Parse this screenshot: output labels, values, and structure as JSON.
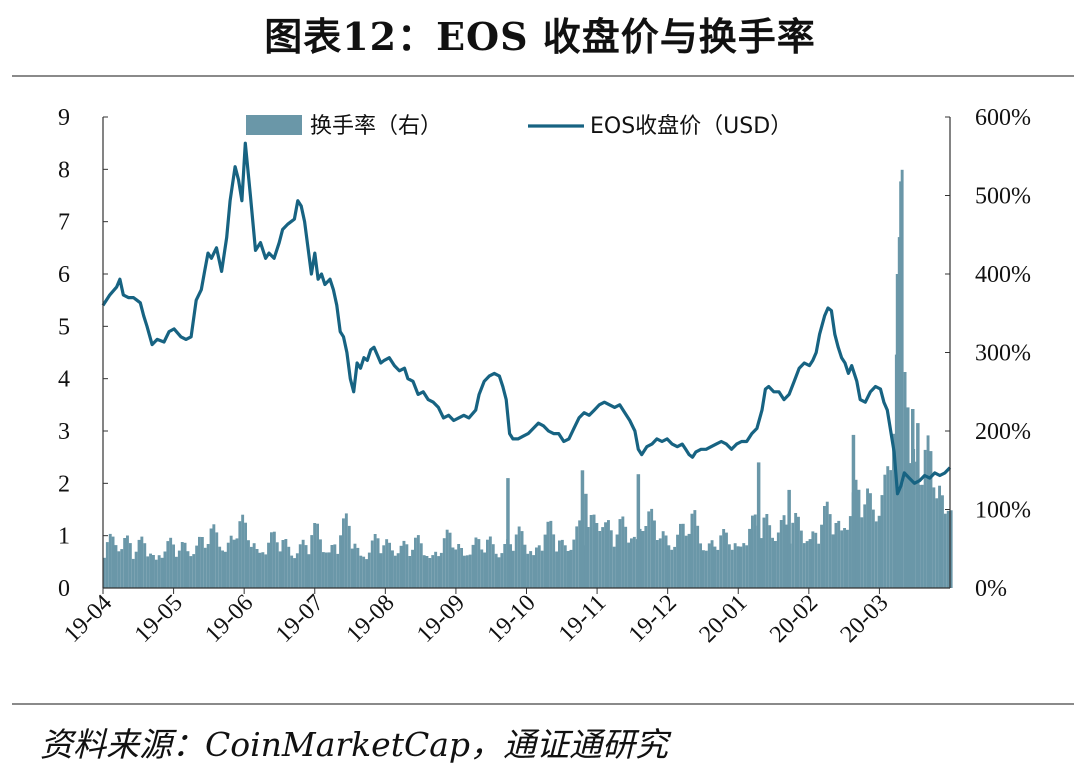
{
  "title": "图表12：EOS 收盘价与换手率",
  "source": "资料来源：CoinMarketCap，通证通研究",
  "chart_data": {
    "type": "line+bar",
    "xlabel": "",
    "x_tick_labels": [
      "19-04",
      "19-05",
      "19-06",
      "19-07",
      "19-08",
      "19-09",
      "19-10",
      "19-11",
      "19-12",
      "20-01",
      "20-02",
      "20-03"
    ],
    "y_left": {
      "label": "",
      "range": [
        0,
        9
      ],
      "ticks": [
        "0",
        "1",
        "2",
        "3",
        "4",
        "5",
        "6",
        "7",
        "8",
        "9"
      ]
    },
    "y_right": {
      "label": "",
      "range": [
        0,
        600
      ],
      "ticks": [
        "0%",
        "100%",
        "200%",
        "300%",
        "400%",
        "500%",
        "600%"
      ]
    },
    "legend": {
      "placement": "top-center",
      "bar_label": "换手率（右）",
      "line_label": "EOS收盘价（USD）"
    },
    "colors": {
      "bar": "#6a97a8",
      "line": "#176382"
    },
    "series": [
      {
        "name": "EOS收盘价（USD）",
        "axis": "left",
        "points": [
          [
            0,
            5.4
          ],
          [
            0.2,
            5.6
          ],
          [
            0.4,
            5.75
          ],
          [
            0.5,
            5.9
          ],
          [
            0.6,
            5.6
          ],
          [
            0.75,
            5.55
          ],
          [
            0.9,
            5.55
          ],
          [
            1.0,
            5.5
          ],
          [
            1.1,
            5.45
          ],
          [
            1.2,
            5.2
          ],
          [
            1.3,
            5.0
          ],
          [
            1.45,
            4.65
          ],
          [
            1.6,
            4.75
          ],
          [
            1.8,
            4.7
          ],
          [
            1.95,
            4.9
          ],
          [
            2.1,
            4.95
          ],
          [
            2.3,
            4.8
          ],
          [
            2.45,
            4.75
          ],
          [
            2.6,
            4.8
          ],
          [
            2.75,
            5.5
          ],
          [
            2.9,
            5.7
          ],
          [
            3.0,
            6.05
          ],
          [
            3.1,
            6.4
          ],
          [
            3.2,
            6.3
          ],
          [
            3.35,
            6.5
          ],
          [
            3.5,
            6.05
          ],
          [
            3.65,
            6.7
          ],
          [
            3.75,
            7.4
          ],
          [
            3.9,
            8.05
          ],
          [
            4.0,
            7.8
          ],
          [
            4.1,
            7.4
          ],
          [
            4.2,
            8.5
          ],
          [
            4.35,
            7.5
          ],
          [
            4.5,
            6.45
          ],
          [
            4.65,
            6.6
          ],
          [
            4.8,
            6.3
          ],
          [
            4.9,
            6.4
          ],
          [
            5.05,
            6.3
          ],
          [
            5.2,
            6.6
          ],
          [
            5.3,
            6.85
          ],
          [
            5.45,
            6.95
          ],
          [
            5.55,
            7.0
          ],
          [
            5.65,
            7.05
          ],
          [
            5.75,
            7.4
          ],
          [
            5.85,
            7.3
          ],
          [
            5.95,
            7.0
          ],
          [
            6.05,
            6.5
          ],
          [
            6.15,
            6.0
          ],
          [
            6.25,
            6.4
          ],
          [
            6.35,
            5.9
          ],
          [
            6.45,
            6.0
          ],
          [
            6.55,
            5.8
          ],
          [
            6.7,
            5.9
          ],
          [
            6.8,
            5.7
          ],
          [
            6.9,
            5.4
          ],
          [
            7.0,
            4.9
          ],
          [
            7.1,
            4.8
          ],
          [
            7.2,
            4.5
          ],
          [
            7.3,
            4.0
          ],
          [
            7.4,
            3.75
          ],
          [
            7.5,
            4.3
          ],
          [
            7.6,
            4.2
          ],
          [
            7.7,
            4.4
          ],
          [
            7.8,
            4.35
          ],
          [
            7.9,
            4.55
          ],
          [
            8.0,
            4.6
          ],
          [
            8.1,
            4.45
          ],
          [
            8.2,
            4.3
          ],
          [
            8.3,
            4.35
          ],
          [
            8.45,
            4.4
          ],
          [
            8.6,
            4.25
          ],
          [
            8.75,
            4.15
          ],
          [
            8.9,
            4.2
          ],
          [
            9.0,
            4.0
          ],
          [
            9.15,
            3.95
          ],
          [
            9.3,
            3.7
          ],
          [
            9.45,
            3.75
          ],
          [
            9.6,
            3.6
          ],
          [
            9.75,
            3.55
          ],
          [
            9.9,
            3.45
          ],
          [
            10.05,
            3.25
          ],
          [
            10.2,
            3.3
          ],
          [
            10.35,
            3.2
          ],
          [
            10.5,
            3.25
          ],
          [
            10.65,
            3.3
          ],
          [
            10.8,
            3.25
          ],
          [
            11.0,
            3.4
          ],
          [
            11.1,
            3.7
          ],
          [
            11.25,
            3.95
          ],
          [
            11.4,
            4.05
          ],
          [
            11.55,
            4.1
          ],
          [
            11.7,
            4.05
          ],
          [
            11.8,
            3.85
          ],
          [
            11.9,
            3.6
          ],
          [
            12.0,
            2.95
          ],
          [
            12.1,
            2.85
          ],
          [
            12.25,
            2.85
          ],
          [
            12.4,
            2.9
          ],
          [
            12.55,
            2.95
          ],
          [
            12.7,
            3.05
          ],
          [
            12.85,
            3.15
          ],
          [
            13.0,
            3.1
          ],
          [
            13.15,
            3.0
          ],
          [
            13.3,
            2.95
          ],
          [
            13.45,
            2.95
          ],
          [
            13.6,
            2.8
          ],
          [
            13.75,
            2.85
          ],
          [
            13.9,
            3.05
          ],
          [
            14.05,
            3.25
          ],
          [
            14.2,
            3.35
          ],
          [
            14.35,
            3.3
          ],
          [
            14.5,
            3.4
          ],
          [
            14.65,
            3.5
          ],
          [
            14.8,
            3.55
          ],
          [
            14.95,
            3.5
          ],
          [
            15.1,
            3.45
          ],
          [
            15.25,
            3.5
          ],
          [
            15.4,
            3.35
          ],
          [
            15.55,
            3.2
          ],
          [
            15.7,
            3.0
          ],
          [
            15.8,
            2.65
          ],
          [
            15.9,
            2.55
          ],
          [
            16.05,
            2.7
          ],
          [
            16.2,
            2.75
          ],
          [
            16.35,
            2.85
          ],
          [
            16.5,
            2.8
          ],
          [
            16.65,
            2.85
          ],
          [
            16.8,
            2.75
          ],
          [
            16.95,
            2.7
          ],
          [
            17.1,
            2.75
          ],
          [
            17.2,
            2.65
          ],
          [
            17.3,
            2.55
          ],
          [
            17.4,
            2.5
          ],
          [
            17.5,
            2.6
          ],
          [
            17.65,
            2.65
          ],
          [
            17.8,
            2.65
          ],
          [
            17.95,
            2.7
          ],
          [
            18.1,
            2.75
          ],
          [
            18.25,
            2.8
          ],
          [
            18.4,
            2.75
          ],
          [
            18.55,
            2.65
          ],
          [
            18.7,
            2.75
          ],
          [
            18.85,
            2.8
          ],
          [
            19.0,
            2.8
          ],
          [
            19.15,
            2.95
          ],
          [
            19.3,
            3.05
          ],
          [
            19.45,
            3.4
          ],
          [
            19.55,
            3.8
          ],
          [
            19.65,
            3.85
          ],
          [
            19.8,
            3.75
          ],
          [
            19.95,
            3.75
          ],
          [
            20.1,
            3.6
          ],
          [
            20.25,
            3.7
          ],
          [
            20.4,
            3.95
          ],
          [
            20.55,
            4.2
          ],
          [
            20.7,
            4.3
          ],
          [
            20.85,
            4.25
          ],
          [
            20.95,
            4.35
          ],
          [
            21.05,
            4.5
          ],
          [
            21.15,
            4.85
          ],
          [
            21.3,
            5.2
          ],
          [
            21.4,
            5.35
          ],
          [
            21.5,
            5.3
          ],
          [
            21.6,
            4.85
          ],
          [
            21.7,
            4.6
          ],
          [
            21.8,
            4.4
          ],
          [
            21.9,
            4.3
          ],
          [
            22.0,
            4.1
          ],
          [
            22.1,
            4.25
          ],
          [
            22.25,
            3.95
          ],
          [
            22.35,
            3.6
          ],
          [
            22.5,
            3.55
          ],
          [
            22.65,
            3.75
          ],
          [
            22.8,
            3.85
          ],
          [
            22.95,
            3.8
          ],
          [
            23.05,
            3.55
          ],
          [
            23.15,
            3.4
          ],
          [
            23.25,
            3.0
          ],
          [
            23.35,
            2.6
          ],
          [
            23.45,
            1.8
          ],
          [
            23.55,
            1.95
          ],
          [
            23.65,
            2.2
          ],
          [
            23.8,
            2.1
          ],
          [
            23.95,
            2.0
          ],
          [
            24.1,
            2.05
          ],
          [
            24.25,
            2.15
          ],
          [
            24.4,
            2.1
          ],
          [
            24.55,
            2.2
          ],
          [
            24.7,
            2.15
          ],
          [
            24.85,
            2.2
          ],
          [
            25.0,
            2.3
          ]
        ]
      },
      {
        "name": "换手率（右）",
        "axis": "right",
        "points": [
          [
            0,
            55
          ],
          [
            0.3,
            60
          ],
          [
            0.6,
            75
          ],
          [
            0.9,
            45
          ],
          [
            1.2,
            55
          ],
          [
            1.5,
            50
          ],
          [
            1.8,
            52
          ],
          [
            2.1,
            48
          ],
          [
            2.4,
            60
          ],
          [
            2.7,
            55
          ],
          [
            3.0,
            60
          ],
          [
            3.3,
            70
          ],
          [
            3.6,
            62
          ],
          [
            3.9,
            75
          ],
          [
            4.2,
            70
          ],
          [
            4.5,
            62
          ],
          [
            4.8,
            55
          ],
          [
            5.1,
            60
          ],
          [
            5.4,
            58
          ],
          [
            5.7,
            52
          ],
          [
            6.0,
            56
          ],
          [
            6.3,
            72
          ],
          [
            6.6,
            58
          ],
          [
            6.9,
            62
          ],
          [
            7.2,
            78
          ],
          [
            7.5,
            55
          ],
          [
            7.8,
            50
          ],
          [
            8.1,
            58
          ],
          [
            8.4,
            55
          ],
          [
            8.7,
            60
          ],
          [
            9.0,
            50
          ],
          [
            9.3,
            55
          ],
          [
            9.6,
            52
          ],
          [
            9.9,
            50
          ],
          [
            10.2,
            60
          ],
          [
            10.5,
            58
          ],
          [
            10.8,
            55
          ],
          [
            11.1,
            52
          ],
          [
            11.4,
            58
          ],
          [
            11.7,
            55
          ],
          [
            12.0,
            60
          ],
          [
            12.3,
            62
          ],
          [
            12.6,
            58
          ],
          [
            12.9,
            65
          ],
          [
            13.2,
            68
          ],
          [
            13.5,
            62
          ],
          [
            13.8,
            70
          ],
          [
            14.1,
            72
          ],
          [
            14.4,
            80
          ],
          [
            14.7,
            110
          ],
          [
            15.0,
            68
          ],
          [
            15.3,
            72
          ],
          [
            15.6,
            78
          ],
          [
            15.9,
            95
          ],
          [
            16.2,
            75
          ],
          [
            16.5,
            70
          ],
          [
            16.8,
            68
          ],
          [
            17.1,
            72
          ],
          [
            17.4,
            85
          ],
          [
            17.7,
            65
          ],
          [
            18.0,
            60
          ],
          [
            18.3,
            58
          ],
          [
            18.6,
            65
          ],
          [
            18.9,
            72
          ],
          [
            19.2,
            75
          ],
          [
            19.5,
            90
          ],
          [
            19.8,
            85
          ],
          [
            20.1,
            80
          ],
          [
            20.4,
            78
          ],
          [
            20.7,
            82
          ],
          [
            21.0,
            75
          ],
          [
            21.3,
            85
          ],
          [
            21.6,
            95
          ],
          [
            21.9,
            100
          ],
          [
            22.2,
            110
          ],
          [
            22.5,
            115
          ],
          [
            22.8,
            120
          ],
          [
            23.1,
            135
          ],
          [
            23.4,
            260
          ],
          [
            23.55,
            515
          ],
          [
            23.7,
            200
          ],
          [
            23.85,
            230
          ],
          [
            24.0,
            160
          ],
          [
            24.3,
            150
          ],
          [
            24.6,
            140
          ],
          [
            24.9,
            130
          ]
        ]
      }
    ],
    "bar_spikes": [
      {
        "x": 11.9,
        "value": 140
      },
      {
        "x": 14.1,
        "value": 150
      },
      {
        "x": 15.75,
        "value": 145
      },
      {
        "x": 19.3,
        "value": 160
      },
      {
        "x": 22.1,
        "value": 195
      },
      {
        "x": 23.5,
        "value": 518
      },
      {
        "x": 23.4,
        "value": 400
      },
      {
        "x": 23.7,
        "value": 230
      },
      {
        "x": 23.85,
        "value": 228
      },
      {
        "x": 24.0,
        "value": 210
      },
      {
        "x": 14.2,
        "value": 120
      },
      {
        "x": 20.2,
        "value": 125
      }
    ]
  }
}
